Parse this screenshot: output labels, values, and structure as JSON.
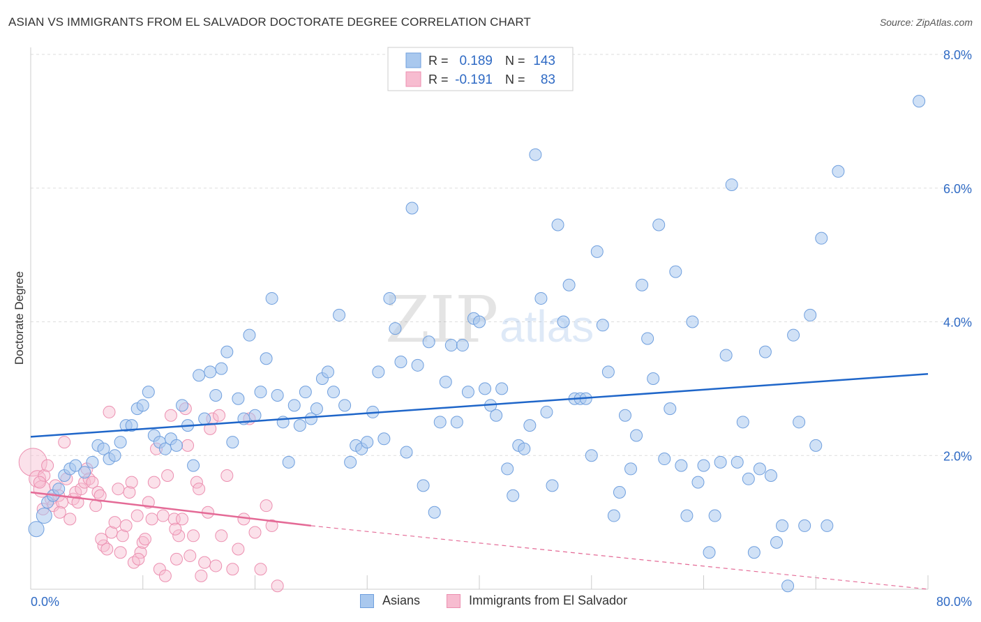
{
  "title": "ASIAN VS IMMIGRANTS FROM EL SALVADOR DOCTORATE DEGREE CORRELATION CHART",
  "source": "Source: ZipAtlas.com",
  "watermark": {
    "zip": "ZIP",
    "atlas": "atlas"
  },
  "colors": {
    "asian_fill": "#a9c8ee",
    "asian_stroke": "#6f9fde",
    "asian_line": "#1f66c9",
    "salv_fill": "#f7bcd0",
    "salv_stroke": "#ec8fb0",
    "salv_line": "#e46a96",
    "value_text": "#2f6ac4",
    "grid": "#dddddd"
  },
  "legend": {
    "asian": {
      "r_label": "R =",
      "r_value": "0.189",
      "n_label": "N =",
      "n_value": "143"
    },
    "salv": {
      "r_label": "R =",
      "r_value": "-0.191",
      "n_label": "N =",
      "n_value": "83"
    }
  },
  "chart_data": {
    "type": "scatter",
    "title": "ASIAN VS IMMIGRANTS FROM EL SALVADOR DOCTORATE DEGREE CORRELATION CHART",
    "xlabel": "",
    "ylabel": "Doctorate Degree",
    "xlim": [
      0,
      80
    ],
    "ylim": [
      0,
      8.0
    ],
    "x_tick_labels": [
      "0.0%",
      "80.0%"
    ],
    "y_ticks": [
      2.0,
      4.0,
      6.0,
      8.0
    ],
    "y_tick_labels": [
      "2.0%",
      "4.0%",
      "6.0%",
      "8.0%"
    ],
    "grid": true,
    "legend_position": "top-center",
    "series": [
      {
        "name": "Asians",
        "r": 0.189,
        "n": 143,
        "trend": {
          "x": [
            0,
            80
          ],
          "y": [
            2.28,
            3.22
          ]
        },
        "points": [
          [
            0.5,
            0.9
          ],
          [
            1.2,
            1.1
          ],
          [
            1.5,
            1.3
          ],
          [
            2,
            1.4
          ],
          [
            2.5,
            1.5
          ],
          [
            3,
            1.7
          ],
          [
            3.5,
            1.8
          ],
          [
            4,
            1.85
          ],
          [
            4.8,
            1.75
          ],
          [
            5.5,
            1.9
          ],
          [
            6,
            2.15
          ],
          [
            6.5,
            2.1
          ],
          [
            7,
            1.95
          ],
          [
            7.5,
            2.0
          ],
          [
            8,
            2.2
          ],
          [
            8.5,
            2.45
          ],
          [
            9,
            2.45
          ],
          [
            9.5,
            2.7
          ],
          [
            10,
            2.75
          ],
          [
            10.5,
            2.95
          ],
          [
            11,
            2.3
          ],
          [
            11.5,
            2.2
          ],
          [
            12,
            2.1
          ],
          [
            12.5,
            2.25
          ],
          [
            13,
            2.15
          ],
          [
            13.5,
            2.75
          ],
          [
            14,
            2.45
          ],
          [
            14.5,
            1.85
          ],
          [
            15,
            3.2
          ],
          [
            15.5,
            2.55
          ],
          [
            16,
            3.25
          ],
          [
            16.5,
            2.9
          ],
          [
            17,
            3.3
          ],
          [
            17.5,
            3.55
          ],
          [
            18,
            2.2
          ],
          [
            18.5,
            2.85
          ],
          [
            19,
            2.55
          ],
          [
            19.5,
            3.8
          ],
          [
            20,
            2.6
          ],
          [
            20.5,
            2.95
          ],
          [
            21,
            3.45
          ],
          [
            21.5,
            4.35
          ],
          [
            22,
            2.9
          ],
          [
            22.5,
            2.5
          ],
          [
            23,
            1.9
          ],
          [
            23.5,
            2.75
          ],
          [
            24,
            2.45
          ],
          [
            24.5,
            2.95
          ],
          [
            25,
            2.55
          ],
          [
            25.5,
            2.7
          ],
          [
            26,
            3.15
          ],
          [
            26.5,
            3.25
          ],
          [
            27,
            2.95
          ],
          [
            27.5,
            4.1
          ],
          [
            28,
            2.75
          ],
          [
            28.5,
            1.9
          ],
          [
            29,
            2.15
          ],
          [
            29.5,
            2.1
          ],
          [
            30,
            2.2
          ],
          [
            30.5,
            2.65
          ],
          [
            31,
            3.25
          ],
          [
            31.5,
            2.25
          ],
          [
            32,
            4.35
          ],
          [
            32.5,
            3.9
          ],
          [
            33,
            3.4
          ],
          [
            33.5,
            2.05
          ],
          [
            34,
            5.7
          ],
          [
            34.5,
            3.35
          ],
          [
            35,
            1.55
          ],
          [
            35.5,
            3.7
          ],
          [
            36,
            1.15
          ],
          [
            36.5,
            2.5
          ],
          [
            37,
            3.1
          ],
          [
            37.5,
            3.65
          ],
          [
            38,
            2.5
          ],
          [
            38.5,
            3.65
          ],
          [
            39,
            2.95
          ],
          [
            39.5,
            4.05
          ],
          [
            40,
            4.0
          ],
          [
            40.5,
            3.0
          ],
          [
            41,
            2.75
          ],
          [
            41.5,
            2.6
          ],
          [
            42,
            3.0
          ],
          [
            42.5,
            1.8
          ],
          [
            43,
            1.4
          ],
          [
            43.5,
            2.15
          ],
          [
            44,
            2.1
          ],
          [
            44.5,
            2.45
          ],
          [
            45,
            6.5
          ],
          [
            45.5,
            4.35
          ],
          [
            46,
            2.65
          ],
          [
            46.5,
            1.55
          ],
          [
            47,
            5.45
          ],
          [
            47.5,
            4.0
          ],
          [
            48,
            4.55
          ],
          [
            48.5,
            2.85
          ],
          [
            49,
            2.85
          ],
          [
            49.5,
            2.85
          ],
          [
            50,
            2.0
          ],
          [
            50.5,
            5.05
          ],
          [
            51,
            3.95
          ],
          [
            51.5,
            3.25
          ],
          [
            52,
            1.1
          ],
          [
            52.5,
            1.45
          ],
          [
            53,
            2.6
          ],
          [
            53.5,
            1.8
          ],
          [
            54,
            2.3
          ],
          [
            54.5,
            4.55
          ],
          [
            55,
            3.75
          ],
          [
            55.5,
            3.15
          ],
          [
            56,
            5.45
          ],
          [
            56.5,
            1.95
          ],
          [
            57,
            2.7
          ],
          [
            57.5,
            4.75
          ],
          [
            58,
            1.85
          ],
          [
            58.5,
            1.1
          ],
          [
            59,
            4.0
          ],
          [
            59.5,
            1.6
          ],
          [
            60,
            1.85
          ],
          [
            60.5,
            0.55
          ],
          [
            61,
            1.1
          ],
          [
            61.5,
            1.9
          ],
          [
            62,
            3.5
          ],
          [
            62.5,
            6.05
          ],
          [
            63,
            1.9
          ],
          [
            63.5,
            2.5
          ],
          [
            64,
            1.65
          ],
          [
            64.5,
            0.55
          ],
          [
            65,
            1.8
          ],
          [
            65.5,
            3.55
          ],
          [
            66,
            1.7
          ],
          [
            66.5,
            0.7
          ],
          [
            67,
            0.95
          ],
          [
            67.5,
            0.05
          ],
          [
            68,
            3.8
          ],
          [
            68.5,
            2.5
          ],
          [
            69,
            0.95
          ],
          [
            69.5,
            4.1
          ],
          [
            70,
            2.15
          ],
          [
            70.5,
            5.25
          ],
          [
            71,
            0.95
          ],
          [
            72,
            6.25
          ],
          [
            79.2,
            7.3
          ]
        ]
      },
      {
        "name": "Immigrants from El Salvador",
        "r": -0.191,
        "n": 83,
        "trend": {
          "x": [
            0,
            25
          ],
          "y": [
            1.45,
            0.95
          ]
        },
        "trend_dashed": {
          "x": [
            25,
            80
          ],
          "y": [
            0.95,
            -0.18
          ]
        },
        "points": [
          [
            0.2,
            1.9
          ],
          [
            0.6,
            1.65
          ],
          [
            1,
            1.5
          ],
          [
            1.2,
            1.7
          ],
          [
            1.5,
            1.85
          ],
          [
            1.8,
            1.35
          ],
          [
            2,
            1.25
          ],
          [
            2.2,
            1.55
          ],
          [
            2.5,
            1.4
          ],
          [
            2.8,
            1.3
          ],
          [
            3,
            2.2
          ],
          [
            3.2,
            1.65
          ],
          [
            3.5,
            1.05
          ],
          [
            3.8,
            1.35
          ],
          [
            4,
            1.45
          ],
          [
            4.2,
            1.3
          ],
          [
            4.5,
            1.5
          ],
          [
            4.8,
            1.6
          ],
          [
            5,
            1.8
          ],
          [
            5.2,
            1.65
          ],
          [
            5.5,
            1.6
          ],
          [
            5.8,
            1.25
          ],
          [
            6,
            1.45
          ],
          [
            6.2,
            1.4
          ],
          [
            6.5,
            0.65
          ],
          [
            6.8,
            0.6
          ],
          [
            7,
            2.65
          ],
          [
            7.2,
            0.85
          ],
          [
            7.5,
            1.0
          ],
          [
            7.8,
            1.5
          ],
          [
            8,
            0.55
          ],
          [
            8.2,
            0.8
          ],
          [
            8.5,
            0.95
          ],
          [
            8.8,
            1.45
          ],
          [
            9,
            1.6
          ],
          [
            9.2,
            0.4
          ],
          [
            9.5,
            1.1
          ],
          [
            9.8,
            0.55
          ],
          [
            10,
            0.7
          ],
          [
            10.2,
            0.75
          ],
          [
            10.5,
            1.3
          ],
          [
            10.8,
            1.05
          ],
          [
            11,
            1.6
          ],
          [
            11.2,
            2.1
          ],
          [
            11.5,
            0.3
          ],
          [
            11.8,
            1.1
          ],
          [
            12,
            0.2
          ],
          [
            12.2,
            1.7
          ],
          [
            12.5,
            2.6
          ],
          [
            12.8,
            1.05
          ],
          [
            13,
            0.45
          ],
          [
            13.2,
            0.8
          ],
          [
            13.5,
            1.05
          ],
          [
            13.8,
            2.7
          ],
          [
            14,
            2.15
          ],
          [
            14.2,
            0.5
          ],
          [
            14.5,
            0.8
          ],
          [
            14.8,
            1.6
          ],
          [
            15,
            1.5
          ],
          [
            15.2,
            0.2
          ],
          [
            15.5,
            0.4
          ],
          [
            15.8,
            1.15
          ],
          [
            16,
            2.4
          ],
          [
            16.2,
            2.55
          ],
          [
            16.5,
            0.35
          ],
          [
            16.8,
            2.6
          ],
          [
            17,
            0.8
          ],
          [
            17.5,
            1.7
          ],
          [
            18,
            0.3
          ],
          [
            18.5,
            0.6
          ],
          [
            19,
            1.05
          ],
          [
            19.5,
            2.55
          ],
          [
            20,
            0.85
          ],
          [
            20.5,
            0.3
          ],
          [
            21,
            1.25
          ],
          [
            21.5,
            0.95
          ],
          [
            22,
            0.05
          ],
          [
            2.6,
            1.15
          ],
          [
            0.8,
            1.6
          ],
          [
            1.1,
            1.2
          ],
          [
            9.6,
            0.45
          ],
          [
            12.9,
            0.9
          ],
          [
            6.3,
            0.75
          ]
        ]
      }
    ]
  },
  "bottom_legend": {
    "asian": "Asians",
    "salv": "Immigrants from El Salvador"
  }
}
